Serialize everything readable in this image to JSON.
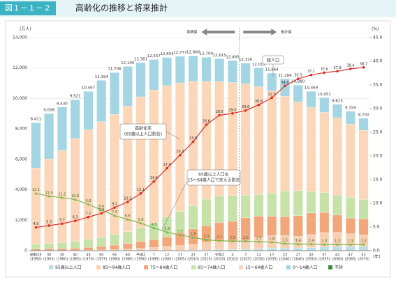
{
  "header": {
    "figure": "図１－１－２",
    "title": "高齢化の推移と将来推計"
  },
  "chart_data": {
    "type": "bar",
    "stacked": true,
    "y_unit": "(万人)",
    "y2_unit": "(%)",
    "x_unit": "(年)",
    "actual_label": "実績値",
    "projection_label": "推計値",
    "categories": [
      "昭和25",
      "30",
      "35",
      "40",
      "45",
      "50",
      "55",
      "60",
      "平成2",
      "7",
      "12",
      "17",
      "22",
      "27",
      "令和2",
      "4",
      "7",
      "12",
      "17",
      "22",
      "27",
      "32",
      "37",
      "42",
      "47",
      "52"
    ],
    "years": [
      "(1950)",
      "(1955)",
      "(1960)",
      "(1965)",
      "(1970)",
      "(1975)",
      "(1980)",
      "(1985)",
      "(1990)",
      "(1995)",
      "(2000)",
      "(2005)",
      "(2010)",
      "(2015)",
      "(2020)",
      "(2022)",
      "(2025)",
      "(2030)",
      "(2035)",
      "(2040)",
      "(2045)",
      "(2050)",
      "(2055)",
      "(2060)",
      "(2065)",
      "(2070)"
    ],
    "ylim": [
      0,
      14000
    ],
    "yticks": [
      0,
      {
        "value": 2000,
        "label": "2,000"
      },
      {
        "value": 4000,
        "label": "4,000"
      },
      {
        "value": 6000,
        "label": "6,000"
      },
      {
        "value": 8000,
        "label": "8,000"
      },
      {
        "value": 10000,
        "label": "10,000"
      },
      {
        "value": 12000,
        "label": "12,000"
      },
      {
        "value": 14000,
        "label": "14,000"
      }
    ],
    "y2lim": [
      0,
      45
    ],
    "y2ticks": [
      {
        "value": 0,
        "label": "0.0"
      },
      {
        "value": 5,
        "label": "5.0"
      },
      {
        "value": 10,
        "label": "10.0"
      },
      {
        "value": 15,
        "label": "15.0"
      },
      {
        "value": 20,
        "label": "20.0"
      },
      {
        "value": 25,
        "label": "25.0"
      },
      {
        "value": 30,
        "label": "30.0"
      },
      {
        "value": 35,
        "label": "35.0"
      },
      {
        "value": 40,
        "label": "40.0"
      },
      {
        "value": 45,
        "label": "45.0"
      }
    ],
    "grid": true,
    "series": [
      {
        "name": "95歳以上人口",
        "color": "#b9dde9",
        "values": [
          0,
          0,
          0,
          1,
          1,
          1,
          2,
          4,
          6,
          9,
          19,
          26,
          34,
          38,
          73,
          76,
          90,
          111,
          163,
          172,
          181,
          192,
          238,
          252,
          276,
          271
        ]
      },
      {
        "name": "85～94歳人口",
        "color": "#f8cfb2",
        "values": [
          10,
          16,
          19,
          21,
          30,
          47,
          64,
          93,
          145,
          197,
          265,
          303,
          377,
          518,
          530,
          554,
          566,
          776,
          823,
          833,
          760,
          863,
          950,
          956,
          835,
          760
        ]
      },
      {
        "name": "75～84歳人口",
        "color": "#f2a77a",
        "values": [
          97,
          124,
          134,
          151,
          183,
          233,
          299,
          374,
          449,
          513,
          619,
          840,
          1020,
          1076,
          1253,
          1307,
          1500,
          1381,
          1265,
          1222,
          1355,
          1427,
          1325,
          1130,
          1038,
          1064
        ]
      },
      {
        "name": "65～74歳人口",
        "color": "#c7e2a8",
        "values": [
          309,
          339,
          387,
          451,
          525,
          606,
          700,
          776,
          893,
          1109,
          1301,
          1407,
          1517,
          1755,
          1747,
          1687,
          1497,
          1428,
          1522,
          1701,
          1649,
          1406,
          1291,
          1306,
          1364,
          1272
        ]
      },
      {
        "name": "15～64歳人口",
        "color": "#fbd6b8",
        "values": [
          5016,
          5549,
          6047,
          6744,
          7213,
          7585,
          7890,
          8255,
          8619,
          8728,
          8642,
          8449,
          8178,
          7727,
          7509,
          7421,
          7310,
          7076,
          6722,
          6214,
          5832,
          5540,
          5281,
          5078,
          4810,
          4536
        ]
      },
      {
        "name": "0～14歳人口",
        "color": "#a3d5e2",
        "values": [
          2979,
          2980,
          2843,
          2553,
          2515,
          2722,
          2751,
          2603,
          2249,
          2001,
          1847,
          1752,
          1680,
          1595,
          1503,
          1450,
          1363,
          1240,
          1169,
          1142,
          1103,
          1041,
          966,
          893,
          836,
          797
        ]
      }
    ],
    "unknown_label": "不詳",
    "unknown_color": "#3d8a3d",
    "total_name": "総人口",
    "total_labels": [
      "8,411",
      "9,008",
      "9,430",
      "9,921",
      "10,467",
      "11,194",
      "11,706",
      "12,105",
      "12,361",
      "12,557",
      "12,693",
      "12,777",
      "12,806",
      "12,709",
      "12,615",
      "12,495",
      "12,326",
      "12,012",
      "11,664",
      "11,284",
      "10,880",
      "10,469",
      "10,051",
      "9,615",
      "9,159",
      "8,700"
    ],
    "lines": [
      {
        "name": "高齢化率",
        "note": "(65歳以上人口割合)",
        "color": "#d9312b",
        "axis": "y2",
        "values": [
          4.9,
          5.3,
          5.7,
          6.3,
          7.1,
          7.9,
          9.1,
          10.3,
          12.1,
          14.6,
          17.4,
          20.2,
          23.0,
          26.6,
          28.6,
          29.0,
          29.6,
          30.8,
          32.3,
          34.8,
          36.3,
          37.1,
          37.6,
          37.9,
          38.4,
          38.7
        ],
        "value_labels": [
          "4.9",
          "5.3",
          "5.7",
          "6.3",
          "7.1",
          "7.9",
          "9.1",
          "10.3",
          "12.1",
          "14.6",
          "17.4",
          "20.2",
          "23.0",
          "26.6",
          "28.6",
          "29.0",
          "29.6",
          "30.8",
          "32.3",
          "34.8",
          "36.3",
          "37.1",
          "37.6",
          "37.9",
          "38.4",
          "38.7"
        ]
      },
      {
        "name": "65歳以上人口を",
        "note": "15～64歳人口で支える割合",
        "color": "#7ab648",
        "axis": "y2",
        "values": [
          12.1,
          11.5,
          11.2,
          10.8,
          9.8,
          8.6,
          7.4,
          6.6,
          5.8,
          4.8,
          3.9,
          3.3,
          2.8,
          2.3,
          2.1,
          2.0,
          2.0,
          1.9,
          1.8,
          1.5,
          1.4,
          1.4,
          1.3,
          1.3,
          1.3,
          1.3
        ],
        "value_labels": [
          "12.1",
          "11.5",
          "11.2",
          "10.8",
          "9.8",
          "8.6",
          "7.4",
          "6.6",
          "5.8",
          "4.8",
          "3.9",
          "3.3",
          "2.8",
          "2.3",
          "2.1",
          "2.0",
          "2.0",
          "1.9",
          "1.8",
          "1.5",
          "1.4",
          "1.4",
          "1.3",
          "1.3",
          "1.3",
          "1.3"
        ]
      }
    ]
  }
}
